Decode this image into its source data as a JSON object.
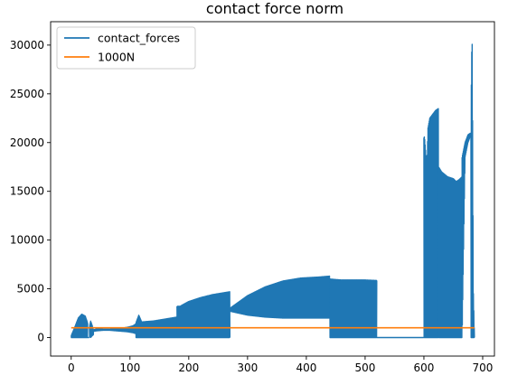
{
  "chart_data": {
    "type": "line",
    "title": "contact force norm",
    "xlabel": "",
    "ylabel": "",
    "xlim": [
      -35,
      720
    ],
    "ylim": [
      -1900,
      32400
    ],
    "xticks": [
      0,
      100,
      200,
      300,
      400,
      500,
      600,
      700
    ],
    "yticks": [
      0,
      5000,
      10000,
      15000,
      20000,
      25000,
      30000
    ],
    "grid": false,
    "legend": {
      "placement": "top-left",
      "entries": [
        "contact_forces",
        "1000N"
      ]
    },
    "series": [
      {
        "name": "contact_forces",
        "color": "#1f77b4",
        "style": "oscillating",
        "note_envelope": "upper and lower envelopes of the rapidly oscillating signal",
        "segments": [
          {
            "x": [
              0,
              5,
              12,
              18,
              24,
              28
            ],
            "upper": [
              200,
              900,
              2000,
              2400,
              2200,
              1500
            ],
            "lower": [
              0,
              0,
              0,
              0,
              0,
              0
            ]
          },
          {
            "x": [
              28,
              30,
              31
            ],
            "upper": [
              0,
              0,
              0
            ],
            "lower": [
              0,
              0,
              0
            ]
          },
          {
            "x": [
              31,
              33,
              36,
              38
            ],
            "upper": [
              1100,
              1700,
              1200,
              700
            ],
            "lower": [
              100,
              0,
              200,
              300
            ]
          },
          {
            "x": [
              38,
              45,
              55,
              65,
              75,
              85,
              95,
              105,
              110
            ],
            "upper": [
              800,
              900,
              850,
              850,
              900,
              950,
              1050,
              1200,
              1400
            ],
            "lower": [
              650,
              700,
              750,
              750,
              700,
              650,
              600,
              500,
              400
            ]
          },
          {
            "x": [
              110,
              115,
              120,
              140,
              160,
              180
            ],
            "upper": [
              1500,
              2300,
              1600,
              1700,
              1900,
              2100
            ],
            "lower": [
              0,
              0,
              0,
              0,
              0,
              0
            ]
          },
          {
            "x": [
              180,
              185,
              200,
              220,
              240,
              260,
              270
            ],
            "upper": [
              3200,
              3200,
              3700,
              4100,
              4400,
              4600,
              4700
            ],
            "lower": [
              0,
              0,
              0,
              0,
              0,
              0,
              0
            ]
          },
          {
            "x": [
              270,
              300,
              330,
              360,
              390,
              420,
              440
            ],
            "upper": [
              3000,
              4300,
              5200,
              5800,
              6100,
              6200,
              6300
            ],
            "lower": [
              2700,
              2300,
              2100,
              2000,
              2000,
              2000,
              2000
            ]
          },
          {
            "x": [
              440,
              460,
              480,
              500,
              520
            ],
            "upper": [
              6000,
              5900,
              5900,
              5900,
              5850
            ],
            "lower": [
              0,
              0,
              0,
              0,
              0
            ]
          },
          {
            "x": [
              520,
              560,
              600
            ],
            "upper": [
              0,
              0,
              0
            ],
            "lower": [
              0,
              0,
              0
            ]
          },
          {
            "x": [
              600,
              601,
              605,
              607,
              610,
              620,
              625
            ],
            "upper": [
              20500,
              20600,
              17500,
              21500,
              22500,
              23300,
              23500
            ],
            "lower": [
              0,
              0,
              0,
              0,
              0,
              0,
              0
            ]
          },
          {
            "x": [
              625,
              630,
              640,
              650,
              655,
              660,
              665
            ],
            "upper": [
              17500,
              17000,
              16500,
              16300,
              16000,
              16200,
              16500
            ],
            "lower": [
              0,
              0,
              0,
              0,
              0,
              0,
              0
            ]
          },
          {
            "x": [
              665,
              670,
              675,
              680
            ],
            "upper": [
              18500,
              20000,
              20800,
              21000
            ],
            "lower": [
              0,
              18500,
              20000,
              20800
            ]
          },
          {
            "x": [
              680,
              681,
              682,
              683,
              684,
              686
            ],
            "upper": [
              21000,
              28000,
              31200,
              20000,
              5000,
              0
            ],
            "lower": [
              0,
              0,
              0,
              0,
              0,
              0
            ]
          }
        ]
      },
      {
        "name": "1000N",
        "color": "#ff7f0e",
        "x": [
          0,
          686
        ],
        "y": [
          1000,
          1000
        ]
      }
    ]
  }
}
